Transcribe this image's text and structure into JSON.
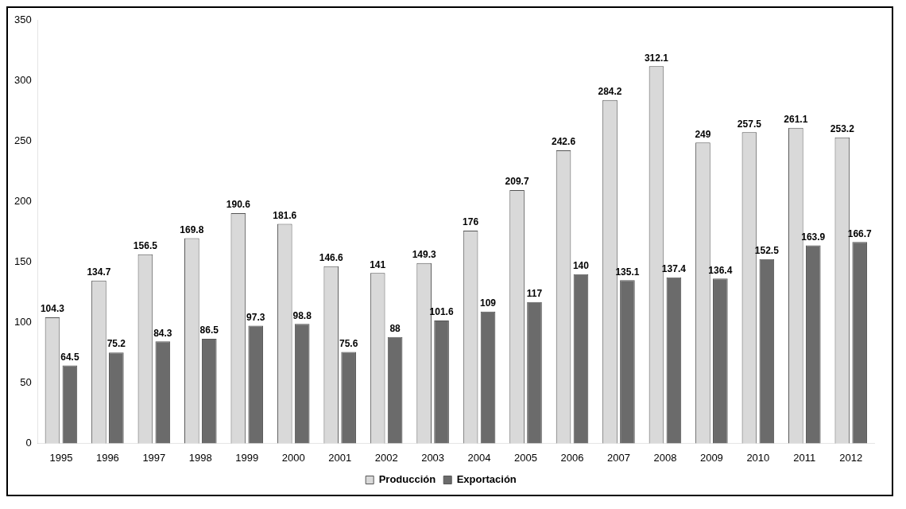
{
  "chart_data": {
    "type": "bar",
    "categories": [
      "1995",
      "1996",
      "1997",
      "1998",
      "1999",
      "2000",
      "2001",
      "2002",
      "2003",
      "2004",
      "2005",
      "2006",
      "2007",
      "2008",
      "2009",
      "2010",
      "2011",
      "2012"
    ],
    "series": [
      {
        "name": "Producción",
        "color": "#d9d9d9",
        "values": [
          104.3,
          134.7,
          156.5,
          169.8,
          190.6,
          181.6,
          146.6,
          141,
          149.3,
          176,
          209.7,
          242.6,
          284.2,
          312.1,
          249,
          257.5,
          261.1,
          253.2
        ]
      },
      {
        "name": "Exportación",
        "color": "#6b6b6b",
        "values": [
          64.5,
          75.2,
          84.3,
          86.5,
          97.3,
          98.8,
          75.6,
          88,
          101.6,
          109,
          117,
          140,
          135.1,
          137.4,
          136.4,
          152.5,
          163.9,
          166.7
        ]
      }
    ],
    "ylim": [
      0,
      350
    ],
    "yticks": [
      0,
      50,
      100,
      150,
      200,
      250,
      300,
      350
    ],
    "grid": false,
    "legend": "bottom",
    "data_labels": true
  }
}
